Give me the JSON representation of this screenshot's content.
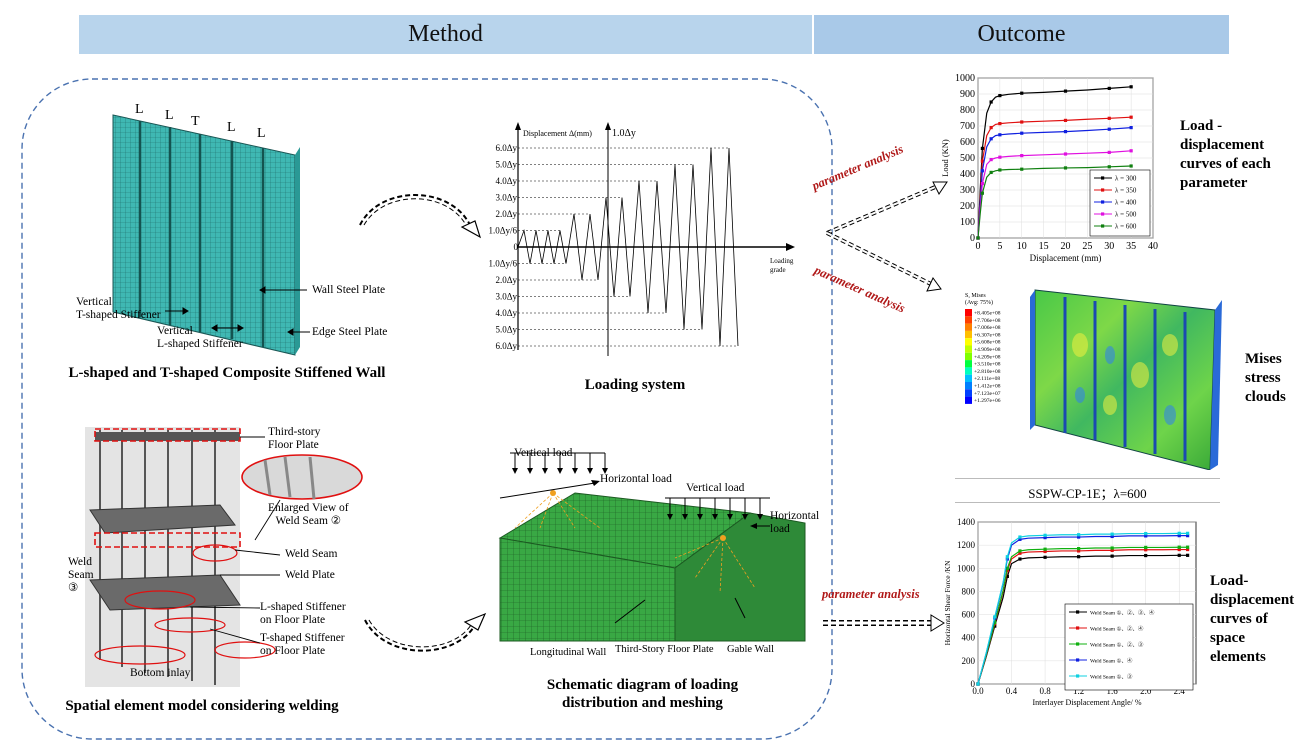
{
  "header": {
    "method": "Method",
    "outcome": "Outcome"
  },
  "colors": {
    "header_method": "#b8d4ec",
    "header_outcome": "#a9c9e8",
    "mesh": "#3fb8b3",
    "accent_red": "#b01818",
    "dashed_border": "#4a72b0"
  },
  "panel_wall": {
    "caption": "L-shaped and T-shaped Composite Stiffened Wall",
    "top_letters": [
      "L",
      "L",
      "T",
      "L",
      "L"
    ],
    "labels": {
      "wall_plate": "Wall Steel Plate",
      "edge_plate": "Edge Steel Plate",
      "vt_stiffener": "Vertical\nT-shaped Stiffener",
      "vl_stiffener": "Vertical\nL-shaped Stiffener"
    }
  },
  "panel_loading": {
    "caption": "Loading system",
    "axis_y": "Displacement Δ(mm)",
    "top_marker": "1.0Δy",
    "x_label": "Loading\ngrade",
    "pos_levels": [
      "6.0Δy",
      "5.0Δy",
      "4.0Δy",
      "3.0Δy",
      "2.0Δy",
      "1.0Δy/6"
    ],
    "zero": "0",
    "neg_levels": [
      "1.0Δy/6",
      "2.0Δy",
      "3.0Δy",
      "4.0Δy",
      "5.0Δy",
      "6.0Δy"
    ]
  },
  "panel_spatial": {
    "caption": "Spatial element model considering welding",
    "labels": {
      "third_story": "Third-story\nFloor Plate",
      "enlarged": "Enlarged View of\nWeld Seam ②",
      "weld_seam": "Weld Seam",
      "weld_plate": "Weld Plate",
      "l_stiff": "L-shaped Stiffener\non Floor Plate",
      "t_stiff": "T-shaped Stiffener\non Floor Plate",
      "bottom": "Bottom inlay",
      "weld3": "Weld\nSeam\n③"
    }
  },
  "panel_mesh": {
    "caption": "Schematic diagram of loading distribution and meshing",
    "labels": {
      "vload1": "Vertical load",
      "hload1": "Horizontal  load",
      "vload2": "Vertical load",
      "hload2": "Horizontal\nload",
      "long_wall": "Longitudinal Wall",
      "floor": "Third-Story Floor Plate",
      "gable": "Gable Wall"
    }
  },
  "arrows": {
    "param1": "parameter analysis",
    "param2": "parameter analysis",
    "param3": "parameter analysis"
  },
  "chart_data": [
    {
      "type": "line",
      "xlabel": "Displacement (mm)",
      "ylabel": "Load (KN)",
      "xlim": [
        0,
        40
      ],
      "ylim": [
        0,
        1000
      ],
      "xticks": [
        0,
        5,
        10,
        15,
        20,
        25,
        30,
        35,
        40
      ],
      "yticks": [
        0,
        100,
        200,
        300,
        400,
        500,
        600,
        700,
        800,
        900,
        1000
      ],
      "legend_position": "bottom-right",
      "x": [
        0,
        0.5,
        1,
        2,
        3,
        4,
        5,
        7,
        10,
        15,
        20,
        25,
        30,
        35
      ],
      "series": [
        {
          "name": "λ = 300",
          "color": "#000000",
          "values": [
            0,
            300,
            560,
            780,
            850,
            880,
            890,
            898,
            905,
            910,
            918,
            925,
            935,
            945
          ]
        },
        {
          "name": "λ = 350",
          "color": "#e01010",
          "values": [
            0,
            250,
            480,
            640,
            690,
            710,
            715,
            720,
            725,
            730,
            735,
            742,
            748,
            755
          ]
        },
        {
          "name": "λ = 400",
          "color": "#1020e0",
          "values": [
            0,
            220,
            420,
            570,
            620,
            640,
            645,
            650,
            655,
            660,
            665,
            672,
            680,
            690
          ]
        },
        {
          "name": "λ = 500",
          "color": "#e010e0",
          "values": [
            0,
            180,
            340,
            460,
            490,
            500,
            505,
            510,
            515,
            520,
            525,
            530,
            535,
            545
          ]
        },
        {
          "name": "λ = 600",
          "color": "#108010",
          "values": [
            0,
            150,
            280,
            380,
            410,
            420,
            425,
            428,
            430,
            435,
            438,
            440,
            445,
            450
          ]
        }
      ]
    },
    {
      "type": "line",
      "xlabel": "Interlayer Displacement Angle/ %",
      "ylabel": "Horizontal Shear Force /KN",
      "xlim": [
        0,
        2.6
      ],
      "ylim": [
        0,
        1400
      ],
      "xticks": [
        0.0,
        0.4,
        0.8,
        1.2,
        1.6,
        2.0,
        2.4
      ],
      "yticks": [
        0,
        200,
        400,
        600,
        800,
        1000,
        1200,
        1400
      ],
      "legend_position": "center-right",
      "x": [
        0,
        0.1,
        0.2,
        0.3,
        0.35,
        0.4,
        0.5,
        0.6,
        0.8,
        1.0,
        1.2,
        1.4,
        1.6,
        1.8,
        2.0,
        2.2,
        2.4,
        2.5
      ],
      "series": [
        {
          "name": "Weld Seam ①、②、③、④",
          "color": "#000000",
          "values": [
            0,
            240,
            500,
            750,
            930,
            1040,
            1080,
            1090,
            1095,
            1100,
            1100,
            1105,
            1105,
            1110,
            1110,
            1110,
            1112,
            1112
          ]
        },
        {
          "name": "Weld Seam ①、②、④",
          "color": "#e01010",
          "values": [
            0,
            250,
            520,
            800,
            980,
            1080,
            1130,
            1140,
            1145,
            1150,
            1150,
            1155,
            1155,
            1160,
            1160,
            1160,
            1162,
            1162
          ]
        },
        {
          "name": "Weld Seam ①、②、③",
          "color": "#10b010",
          "values": [
            0,
            255,
            530,
            810,
            1000,
            1100,
            1150,
            1160,
            1165,
            1170,
            1170,
            1175,
            1175,
            1180,
            1180,
            1180,
            1182,
            1182
          ]
        },
        {
          "name": "Weld Seam ①、④",
          "color": "#1020e0",
          "values": [
            0,
            270,
            570,
            870,
            1080,
            1200,
            1250,
            1260,
            1265,
            1270,
            1270,
            1275,
            1275,
            1280,
            1280,
            1280,
            1282,
            1282
          ]
        },
        {
          "name": "Weld Seam ①、③",
          "color": "#10d0e0",
          "values": [
            0,
            275,
            580,
            880,
            1100,
            1220,
            1270,
            1280,
            1285,
            1290,
            1290,
            1295,
            1295,
            1300,
            1300,
            1300,
            1302,
            1302
          ]
        }
      ]
    }
  ],
  "contour": {
    "legend_title": "S, Mises\n(Avg: 75%)",
    "legend_values": [
      "+8.405e+08",
      "+7.706e+08",
      "+7.006e+08",
      "+6.307e+08",
      "+5.608e+08",
      "+4.909e+08",
      "+4.209e+08",
      "+3.510e+08",
      "+2.810e+08",
      "+2.111e+08",
      "+1.412e+08",
      "+7.123e+07",
      "+1.297e+06"
    ],
    "legend_colors": [
      "#ff0000",
      "#ff4000",
      "#ff8000",
      "#ffbf00",
      "#ffff00",
      "#bfff00",
      "#80ff00",
      "#00ff40",
      "#00ffbf",
      "#00bfff",
      "#0080ff",
      "#0040ff",
      "#0000ff"
    ],
    "caption": "SSPW-CP-1E；λ=600"
  },
  "outcome_labels": {
    "load_disp": "Load -\ndisplacement\ncurves of each\nparameter",
    "mises": "Mises\nstress\nclouds",
    "space": "Load-\ndisplacement\ncurves of\nspace\nelements"
  }
}
